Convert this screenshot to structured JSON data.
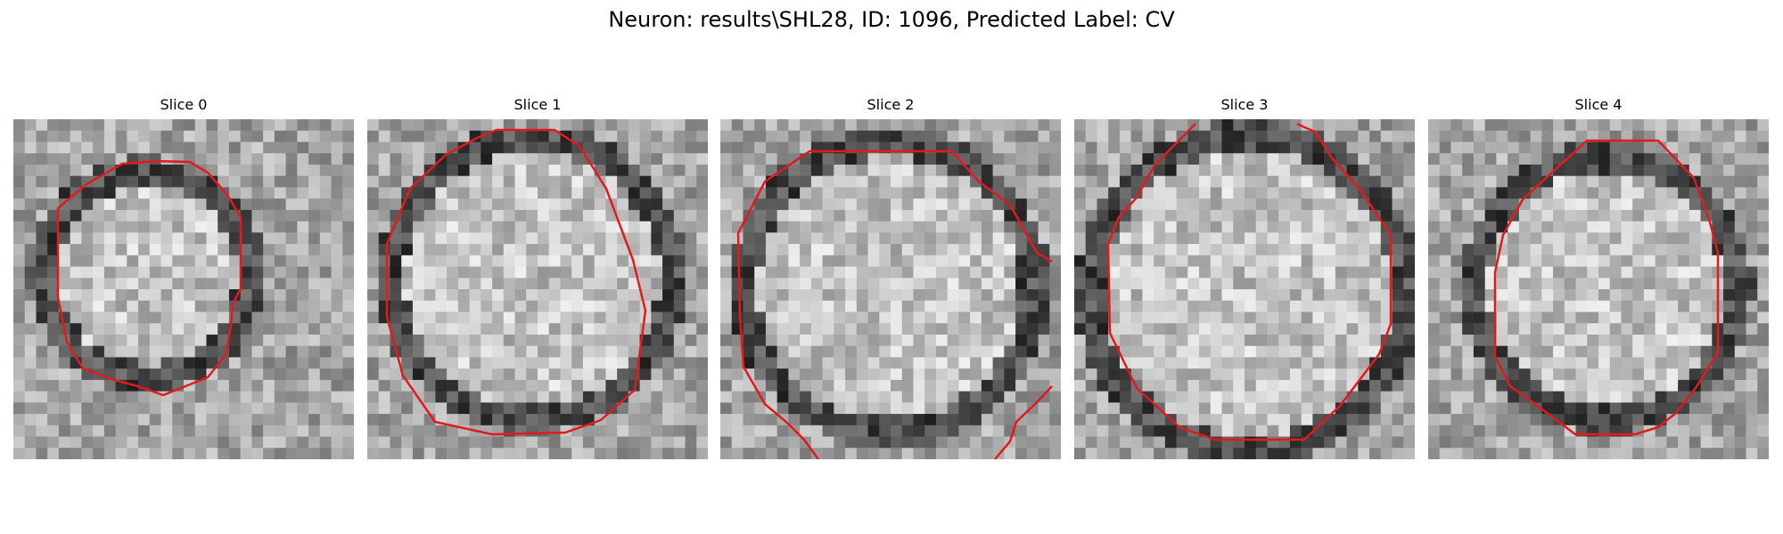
{
  "title": "Neuron: results\\SHL28, ID: 1096, Predicted Label: CV",
  "contour_color": "#e31a1c",
  "slices": [
    {
      "label": "Slice 0"
    },
    {
      "label": "Slice 1"
    },
    {
      "label": "Slice 2"
    },
    {
      "label": "Slice 3"
    },
    {
      "label": "Slice 4"
    }
  ]
}
